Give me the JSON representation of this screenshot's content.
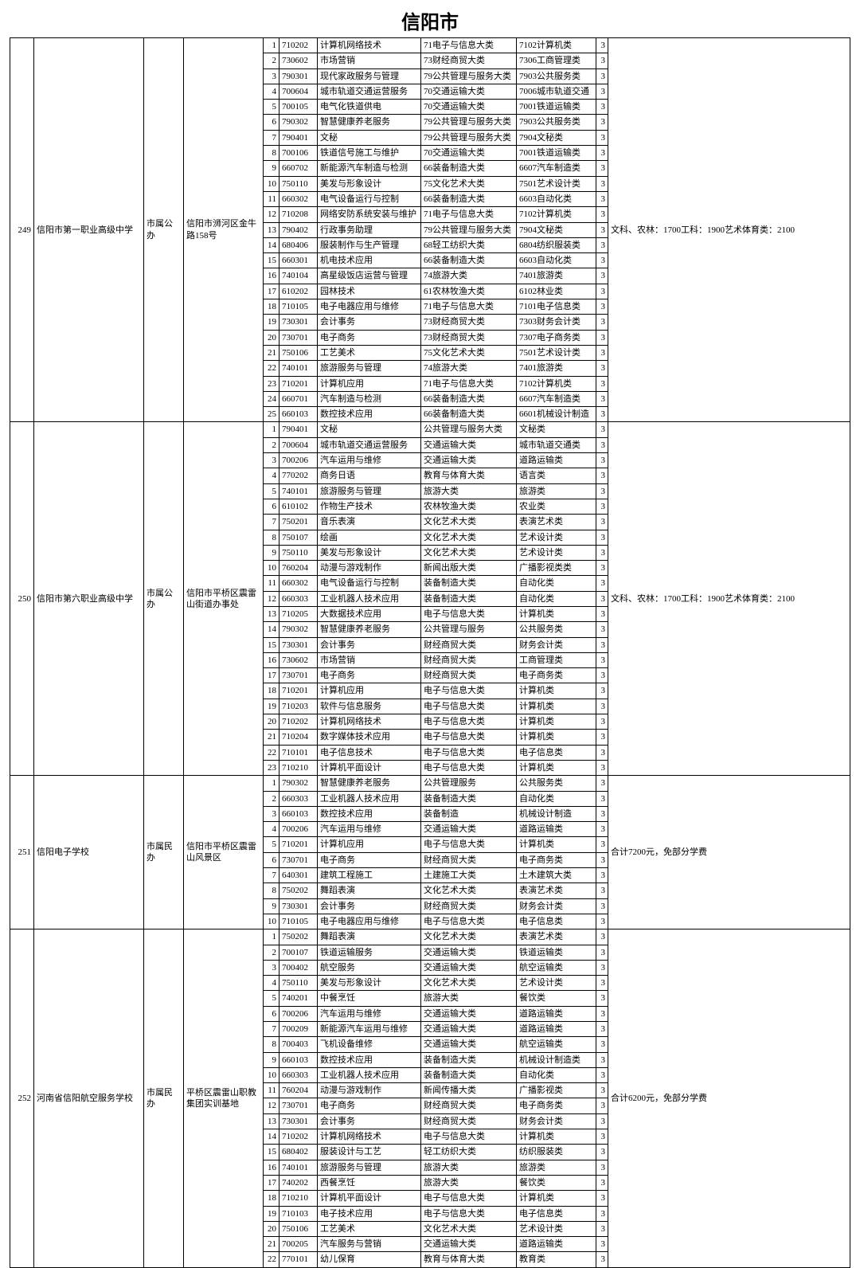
{
  "title": "信阳市",
  "schools": [
    {
      "id": "249",
      "name": "信阳市第一职业高级中学",
      "type": "市属公办",
      "addr": "信阳市浉河区金牛路158号",
      "note": "文科、农林：1700工科：1900艺术体育类：2100",
      "rows": [
        {
          "seq": "1",
          "code": "710202",
          "major": "计算机网络技术",
          "cat1": "71电子与信息大类",
          "cat2": "7102计算机类",
          "years": "3"
        },
        {
          "seq": "2",
          "code": "730602",
          "major": "市场营销",
          "cat1": "73财经商贸大类",
          "cat2": "7306工商管理类",
          "years": "3"
        },
        {
          "seq": "3",
          "code": "790301",
          "major": "现代家政服务与管理",
          "cat1": "79公共管理与服务大类",
          "cat2": "7903公共服务类",
          "years": "3"
        },
        {
          "seq": "4",
          "code": "700604",
          "major": "城市轨道交通运营服务",
          "cat1": "70交通运输大类",
          "cat2": "7006城市轨道交通",
          "years": "3"
        },
        {
          "seq": "5",
          "code": "700105",
          "major": "电气化铁道供电",
          "cat1": "70交通运输大类",
          "cat2": "7001铁道运输类",
          "years": "3"
        },
        {
          "seq": "6",
          "code": "790302",
          "major": "智慧健康养老服务",
          "cat1": "79公共管理与服务大类",
          "cat2": "7903公共服务类",
          "years": "3"
        },
        {
          "seq": "7",
          "code": "790401",
          "major": "文秘",
          "cat1": "79公共管理与服务大类",
          "cat2": "7904文秘类",
          "years": "3"
        },
        {
          "seq": "8",
          "code": "700106",
          "major": "铁道信号施工与维护",
          "cat1": "70交通运输大类",
          "cat2": "7001铁道运输类",
          "years": "3"
        },
        {
          "seq": "9",
          "code": "660702",
          "major": "新能源汽车制造与检测",
          "cat1": "66装备制造大类",
          "cat2": "6607汽车制造类",
          "years": "3"
        },
        {
          "seq": "10",
          "code": "750110",
          "major": "美发与形象设计",
          "cat1": "75文化艺术大类",
          "cat2": "7501艺术设计类",
          "years": "3"
        },
        {
          "seq": "11",
          "code": "660302",
          "major": "电气设备运行与控制",
          "cat1": "66装备制造大类",
          "cat2": "6603自动化类",
          "years": "3"
        },
        {
          "seq": "12",
          "code": "710208",
          "major": "网络安防系统安装与维护",
          "cat1": "71电子与信息大类",
          "cat2": "7102计算机类",
          "years": "3"
        },
        {
          "seq": "13",
          "code": "790402",
          "major": "行政事务助理",
          "cat1": "79公共管理与服务大类",
          "cat2": "7904文秘类",
          "years": "3"
        },
        {
          "seq": "14",
          "code": "680406",
          "major": "服装制作与生产管理",
          "cat1": "68轻工纺织大类",
          "cat2": "6804纺织服装类",
          "years": "3"
        },
        {
          "seq": "15",
          "code": "660301",
          "major": "机电技术应用",
          "cat1": "66装备制造大类",
          "cat2": "6603自动化类",
          "years": "3"
        },
        {
          "seq": "16",
          "code": "740104",
          "major": "高星级饭店运营与管理",
          "cat1": "74旅游大类",
          "cat2": "7401旅游类",
          "years": "3"
        },
        {
          "seq": "17",
          "code": "610202",
          "major": "园林技术",
          "cat1": "61农林牧渔大类",
          "cat2": "6102林业类",
          "years": "3"
        },
        {
          "seq": "18",
          "code": "710105",
          "major": "电子电器应用与维修",
          "cat1": "71电子与信息大类",
          "cat2": "7101电子信息类",
          "years": "3"
        },
        {
          "seq": "19",
          "code": "730301",
          "major": "会计事务",
          "cat1": "73财经商贸大类",
          "cat2": "7303财务会计类",
          "years": "3"
        },
        {
          "seq": "20",
          "code": "730701",
          "major": "电子商务",
          "cat1": "73财经商贸大类",
          "cat2": "7307电子商务类",
          "years": "3"
        },
        {
          "seq": "21",
          "code": "750106",
          "major": "工艺美术",
          "cat1": "75文化艺术大类",
          "cat2": "7501艺术设计类",
          "years": "3"
        },
        {
          "seq": "22",
          "code": "740101",
          "major": "旅游服务与管理",
          "cat1": "74旅游大类",
          "cat2": "7401旅游类",
          "years": "3"
        },
        {
          "seq": "23",
          "code": "710201",
          "major": "计算机应用",
          "cat1": "71电子与信息大类",
          "cat2": "7102计算机类",
          "years": "3"
        },
        {
          "seq": "24",
          "code": "660701",
          "major": "汽车制造与检测",
          "cat1": "66装备制造大类",
          "cat2": "6607汽车制造类",
          "years": "3"
        },
        {
          "seq": "25",
          "code": "660103",
          "major": "数控技术应用",
          "cat1": "66装备制造大类",
          "cat2": "6601机械设计制造",
          "years": "3"
        }
      ]
    },
    {
      "id": "250",
      "name": "信阳市第六职业高级中学",
      "type": "市属公办",
      "addr": "信阳市平桥区震雷山街道办事处",
      "note": "文科、农林：1700工科：1900艺术体育类：2100",
      "rows": [
        {
          "seq": "1",
          "code": "790401",
          "major": "文秘",
          "cat1": "公共管理与服务大类",
          "cat2": "文秘类",
          "years": "3"
        },
        {
          "seq": "2",
          "code": "700604",
          "major": "城市轨道交通运营服务",
          "cat1": "交通运输大类",
          "cat2": "城市轨道交通类",
          "years": "3"
        },
        {
          "seq": "3",
          "code": "700206",
          "major": "汽车运用与维修",
          "cat1": "交通运输大类",
          "cat2": "道路运输类",
          "years": "3"
        },
        {
          "seq": "4",
          "code": "770202",
          "major": "商务日语",
          "cat1": "教育与体育大类",
          "cat2": "语言类",
          "years": "3"
        },
        {
          "seq": "5",
          "code": "740101",
          "major": "旅游服务与管理",
          "cat1": "旅游大类",
          "cat2": "旅游类",
          "years": "3"
        },
        {
          "seq": "6",
          "code": "610102",
          "major": "作物生产技术",
          "cat1": "农林牧渔大类",
          "cat2": "农业类",
          "years": "3"
        },
        {
          "seq": "7",
          "code": "750201",
          "major": "音乐表演",
          "cat1": "文化艺术大类",
          "cat2": "表演艺术类",
          "years": "3"
        },
        {
          "seq": "8",
          "code": "750107",
          "major": "绘画",
          "cat1": "文化艺术大类",
          "cat2": "艺术设计类",
          "years": "3"
        },
        {
          "seq": "9",
          "code": "750110",
          "major": "美发与形象设计",
          "cat1": "文化艺术大类",
          "cat2": "艺术设计类",
          "years": "3"
        },
        {
          "seq": "10",
          "code": "760204",
          "major": "动漫与游戏制作",
          "cat1": "新闻出版大类",
          "cat2": "广播影视类类",
          "years": "3"
        },
        {
          "seq": "11",
          "code": "660302",
          "major": "电气设备运行与控制",
          "cat1": "装备制造大类",
          "cat2": "自动化类",
          "years": "3"
        },
        {
          "seq": "12",
          "code": "660303",
          "major": "工业机器人技术应用",
          "cat1": "装备制造大类",
          "cat2": "自动化类",
          "years": "3"
        },
        {
          "seq": "13",
          "code": "710205",
          "major": "大数据技术应用",
          "cat1": "电子与信息大类",
          "cat2": "计算机类",
          "years": "3"
        },
        {
          "seq": "14",
          "code": "790302",
          "major": "智慧健康养老服务",
          "cat1": "公共管理与服务",
          "cat2": "公共服务类",
          "years": "3"
        },
        {
          "seq": "15",
          "code": "730301",
          "major": "会计事务",
          "cat1": "财经商贸大类",
          "cat2": "财务会计类",
          "years": "3"
        },
        {
          "seq": "16",
          "code": "730602",
          "major": "市场营销",
          "cat1": "财经商贸大类",
          "cat2": "工商管理类",
          "years": "3"
        },
        {
          "seq": "17",
          "code": "730701",
          "major": "电子商务",
          "cat1": "财经商贸大类",
          "cat2": "电子商务类",
          "years": "3"
        },
        {
          "seq": "18",
          "code": "710201",
          "major": "计算机应用",
          "cat1": "电子与信息大类",
          "cat2": "计算机类",
          "years": "3"
        },
        {
          "seq": "19",
          "code": "710203",
          "major": "软件与信息服务",
          "cat1": "电子与信息大类",
          "cat2": "计算机类",
          "years": "3"
        },
        {
          "seq": "20",
          "code": "710202",
          "major": "计算机网络技术",
          "cat1": "电子与信息大类",
          "cat2": "计算机类",
          "years": "3"
        },
        {
          "seq": "21",
          "code": "710204",
          "major": "数字媒体技术应用",
          "cat1": "电子与信息大类",
          "cat2": "计算机类",
          "years": "3"
        },
        {
          "seq": "22",
          "code": "710101",
          "major": "电子信息技术",
          "cat1": "电子与信息大类",
          "cat2": "电子信息类",
          "years": "3"
        },
        {
          "seq": "23",
          "code": "710210",
          "major": "计算机平面设计",
          "cat1": "电子与信息大类",
          "cat2": "计算机类",
          "years": "3"
        }
      ]
    },
    {
      "id": "251",
      "name": "信阳电子学校",
      "type": "市属民办",
      "addr": "信阳市平桥区震雷山风景区",
      "note": "合计7200元，免部分学费",
      "rows": [
        {
          "seq": "1",
          "code": "790302",
          "major": "智慧健康养老服务",
          "cat1": "公共管理服务",
          "cat2": "公共服务类",
          "years": "3"
        },
        {
          "seq": "2",
          "code": "660303",
          "major": "工业机器人技术应用",
          "cat1": "装备制造大类",
          "cat2": "自动化类",
          "years": "3"
        },
        {
          "seq": "3",
          "code": "660103",
          "major": "数控技术应用",
          "cat1": "装备制造",
          "cat2": "机械设计制造",
          "years": "3"
        },
        {
          "seq": "4",
          "code": "700206",
          "major": "汽车运用与维修",
          "cat1": "交通运输大类",
          "cat2": "道路运输类",
          "years": "3"
        },
        {
          "seq": "5",
          "code": "710201",
          "major": "计算机应用",
          "cat1": "电子与信息大类",
          "cat2": "计算机类",
          "years": "3"
        },
        {
          "seq": "6",
          "code": "730701",
          "major": "电子商务",
          "cat1": "财经商贸大类",
          "cat2": "电子商务类",
          "years": "3"
        },
        {
          "seq": "7",
          "code": "640301",
          "major": "建筑工程施工",
          "cat1": "土建施工大类",
          "cat2": "土木建筑大类",
          "years": "3"
        },
        {
          "seq": "8",
          "code": "750202",
          "major": "舞蹈表演",
          "cat1": "文化艺术大类",
          "cat2": "表演艺术类",
          "years": "3"
        },
        {
          "seq": "9",
          "code": "730301",
          "major": "会计事务",
          "cat1": "财经商贸大类",
          "cat2": "财务会计类",
          "years": "3"
        },
        {
          "seq": "10",
          "code": "710105",
          "major": "电子电器应用与维修",
          "cat1": "电子与信息大类",
          "cat2": "电子信息类",
          "years": "3"
        }
      ]
    },
    {
      "id": "252",
      "name": "河南省信阳航空服务学校",
      "type": "市属民办",
      "addr": "平桥区震雷山职教集团实训基地",
      "note": "合计6200元，免部分学费",
      "rows": [
        {
          "seq": "1",
          "code": "750202",
          "major": "舞蹈表演",
          "cat1": "文化艺术大类",
          "cat2": "表演艺术类",
          "years": "3"
        },
        {
          "seq": "2",
          "code": "700107",
          "major": "铁道运输服务",
          "cat1": "交通运输大类",
          "cat2": "铁道运输类",
          "years": "3"
        },
        {
          "seq": "3",
          "code": "700402",
          "major": "航空服务",
          "cat1": "交通运输大类",
          "cat2": "航空运输类",
          "years": "3"
        },
        {
          "seq": "4",
          "code": "750110",
          "major": "美发与形象设计",
          "cat1": "文化艺术大类",
          "cat2": "艺术设计类",
          "years": "3"
        },
        {
          "seq": "5",
          "code": "740201",
          "major": "中餐烹饪",
          "cat1": "旅游大类",
          "cat2": "餐饮类",
          "years": "3"
        },
        {
          "seq": "6",
          "code": "700206",
          "major": "汽车运用与维修",
          "cat1": "交通运输大类",
          "cat2": "道路运输类",
          "years": "3"
        },
        {
          "seq": "7",
          "code": "700209",
          "major": "新能源汽车运用与维修",
          "cat1": "交通运输大类",
          "cat2": "道路运输类",
          "years": "3"
        },
        {
          "seq": "8",
          "code": "700403",
          "major": "飞机设备维修",
          "cat1": "交通运输大类",
          "cat2": "航空运输类",
          "years": "3"
        },
        {
          "seq": "9",
          "code": "660103",
          "major": "数控技术应用",
          "cat1": "装备制造大类",
          "cat2": "机械设计制造类",
          "years": "3"
        },
        {
          "seq": "10",
          "code": "660303",
          "major": "工业机器人技术应用",
          "cat1": "装备制造大类",
          "cat2": "自动化类",
          "years": "3"
        },
        {
          "seq": "11",
          "code": "760204",
          "major": "动漫与游戏制作",
          "cat1": "新闻传播大类",
          "cat2": "广播影视类",
          "years": "3"
        },
        {
          "seq": "12",
          "code": "730701",
          "major": "电子商务",
          "cat1": "财经商贸大类",
          "cat2": "电子商务类",
          "years": "3"
        },
        {
          "seq": "13",
          "code": "730301",
          "major": "会计事务",
          "cat1": "财经商贸大类",
          "cat2": "财务会计类",
          "years": "3"
        },
        {
          "seq": "14",
          "code": "710202",
          "major": "计算机网络技术",
          "cat1": "电子与信息大类",
          "cat2": "计算机类",
          "years": "3"
        },
        {
          "seq": "15",
          "code": "680402",
          "major": "服装设计与工艺",
          "cat1": "轻工纺织大类",
          "cat2": "纺织服装类",
          "years": "3"
        },
        {
          "seq": "16",
          "code": "740101",
          "major": "旅游服务与管理",
          "cat1": "旅游大类",
          "cat2": "旅游类",
          "years": "3"
        },
        {
          "seq": "17",
          "code": "740202",
          "major": "西餐烹饪",
          "cat1": "旅游大类",
          "cat2": "餐饮类",
          "years": "3"
        },
        {
          "seq": "18",
          "code": "710210",
          "major": "计算机平面设计",
          "cat1": "电子与信息大类",
          "cat2": "计算机类",
          "years": "3"
        },
        {
          "seq": "19",
          "code": "710103",
          "major": "电子技术应用",
          "cat1": "电子与信息大类",
          "cat2": "电子信息类",
          "years": "3"
        },
        {
          "seq": "20",
          "code": "750106",
          "major": "工艺美术",
          "cat1": "文化艺术大类",
          "cat2": "艺术设计类",
          "years": "3"
        },
        {
          "seq": "21",
          "code": "700205",
          "major": "汽车服务与营销",
          "cat1": "交通运输大类",
          "cat2": "道路运输类",
          "years": "3"
        },
        {
          "seq": "22",
          "code": "770101",
          "major": "幼儿保育",
          "cat1": "教育与体育大类",
          "cat2": "教育类",
          "years": "3"
        }
      ]
    }
  ]
}
